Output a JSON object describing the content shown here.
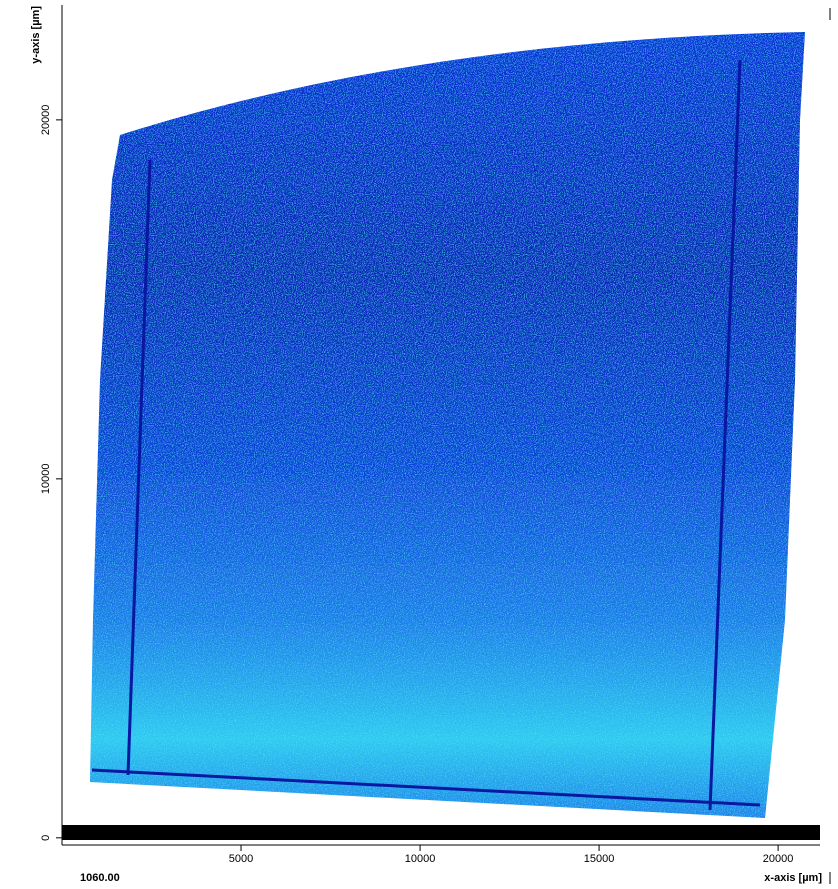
{
  "chart_data": {
    "type": "image",
    "xlabel": "x-axis [µm]",
    "ylabel": "y-axis [µm]",
    "status": "1060.00",
    "xlim": [
      0,
      21170
    ],
    "ylim": [
      -200,
      23200
    ],
    "xticks": [
      5000,
      10000,
      15000,
      20000
    ],
    "yticks": [
      0,
      10000,
      20000
    ]
  }
}
